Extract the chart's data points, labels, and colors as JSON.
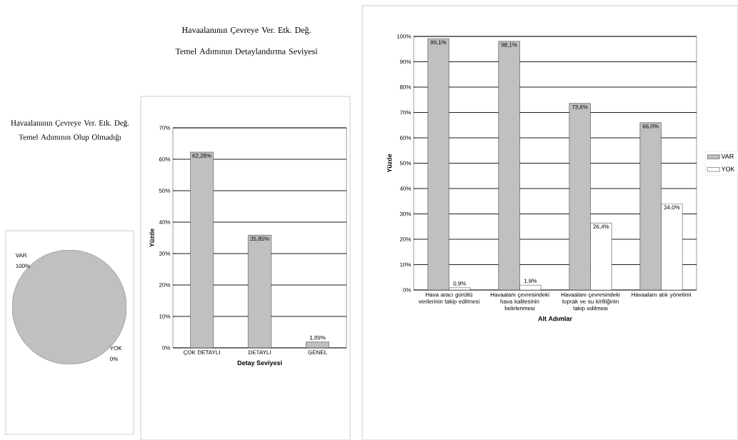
{
  "chart_data": [
    {
      "type": "pie",
      "title": "Havaalanının Çevreye Ver. Etk. Değ. Temel Adımının Olup Olmadığı",
      "categories": [
        "VAR",
        "YOK"
      ],
      "values": [
        100,
        0
      ],
      "colors": [
        "#c0c0c0",
        "#ffffff"
      ],
      "value_labels": [
        "100%",
        "0%"
      ]
    },
    {
      "type": "bar",
      "title": "Havaalanının Çevreye Ver. Etk. Değ. Temel Adımının Detaylandırma Seviyesi",
      "xlabel": "Detay Seviyesi",
      "ylabel": "Yüzde",
      "categories": [
        "ÇOK DETAYLI",
        "DETAYLI",
        "GENEL"
      ],
      "values": [
        62.28,
        35.85,
        1.89
      ],
      "color": "#c0c0c0",
      "value_labels": [
        "62,28%",
        "35,85%",
        "1,89%"
      ],
      "ylim": [
        0,
        70
      ],
      "yticks": [
        {
          "value": 0,
          "label": "0%"
        },
        {
          "value": 10,
          "label": "10%"
        },
        {
          "value": 20,
          "label": "20%"
        },
        {
          "value": 30,
          "label": "30%"
        },
        {
          "value": 40,
          "label": "40%"
        },
        {
          "value": 50,
          "label": "50%"
        },
        {
          "value": 60,
          "label": "60%"
        },
        {
          "value": 70,
          "label": "70%"
        }
      ],
      "grid": "y"
    },
    {
      "type": "bar",
      "xlabel": "Alt Adımlar",
      "ylabel": "Yüzde",
      "categories": [
        "Hava aracı gürültü verilerinin takip edilmesi",
        "Havaalanı çevresindeki hava kalitesinin belirlenmesi",
        "Havaalanı çevresindeki toprak ve su kirliliğinin takip edilmesi",
        "Havaalanı atık yönetimi"
      ],
      "series": [
        {
          "name": "VAR",
          "color": "#c0c0c0",
          "values": [
            99.1,
            98.1,
            73.6,
            66.0
          ],
          "value_labels": [
            "99,1%",
            "98,1%",
            "73,6%",
            "66,0%"
          ]
        },
        {
          "name": "YOK",
          "color": "#ffffff",
          "values": [
            0.9,
            1.9,
            26.4,
            34.0
          ],
          "value_labels": [
            "0,9%",
            "1,9%",
            "26,4%",
            "34,0%"
          ]
        }
      ],
      "ylim": [
        0,
        100
      ],
      "yticks": [
        {
          "value": 0,
          "label": "0%"
        },
        {
          "value": 10,
          "label": "10%"
        },
        {
          "value": 20,
          "label": "20%"
        },
        {
          "value": 30,
          "label": "30%"
        },
        {
          "value": 40,
          "label": "40%"
        },
        {
          "value": 50,
          "label": "50%"
        },
        {
          "value": 60,
          "label": "60%"
        },
        {
          "value": 70,
          "label": "70%"
        },
        {
          "value": 80,
          "label": "80%"
        },
        {
          "value": 90,
          "label": "90%"
        },
        {
          "value": 100,
          "label": "100%"
        }
      ],
      "grid": "y",
      "legend": "right"
    }
  ]
}
